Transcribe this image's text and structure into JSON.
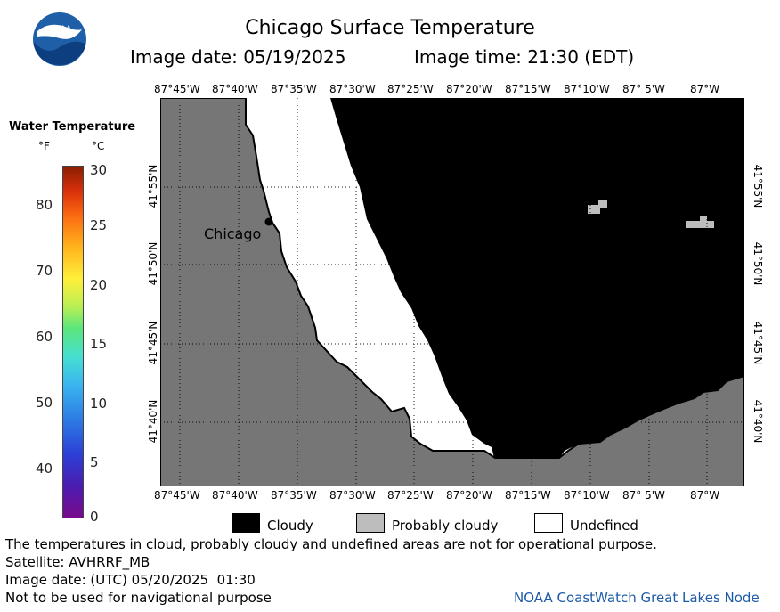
{
  "header": {
    "title": "Chicago Surface Temperature",
    "image_date_label": "Image date: 05/19/2025",
    "image_time_label": "Image time: 21:30 (EDT)",
    "logo_text": "NOAA"
  },
  "map": {
    "top_lon_labels": [
      "87°45'W",
      "87°40'W",
      "87°35'W",
      "87°30'W",
      "87°25'W",
      "87°20'W",
      "87°15'W",
      "87°10'W",
      "87° 5'W",
      "87°W"
    ],
    "bottom_lon_labels": [
      "87°45'W",
      "87°40'W",
      "87°35'W",
      "87°30'W",
      "87°25'W",
      "87°20'W",
      "87°15'W",
      "87°10'W",
      "87° 5'W",
      "87°W"
    ],
    "lat_labels": [
      "41°55'N",
      "41°50'N",
      "41°45'N",
      "41°40'N"
    ],
    "city_label": "Chicago",
    "colors": {
      "land": "#747474",
      "cloud": "#000000",
      "probably_cloudy": "#bdbdbd",
      "undefined": "#ffffff"
    }
  },
  "temperature_scale": {
    "title": "Water Temperature",
    "unit_f": "°F",
    "unit_c": "°C",
    "f_labels": [
      "80",
      "70",
      "60",
      "50",
      "40"
    ],
    "c_labels": [
      "30",
      "25",
      "20",
      "15",
      "10",
      "5",
      "0"
    ]
  },
  "key": {
    "cloudy": "Cloudy",
    "probably_cloudy": "Probably cloudy",
    "undefined": "Undefined"
  },
  "footer": {
    "disclaimer": "The temperatures in cloud, probably cloudy and undefined areas are not for operational purpose.",
    "satellite": "Satellite: AVHRRF_MB",
    "utc_date": "Image date: (UTC) 05/20/2025  01:30",
    "navigation": "Not to be used for navigational purpose",
    "credit": "NOAA CoastWatch Great Lakes Node"
  }
}
